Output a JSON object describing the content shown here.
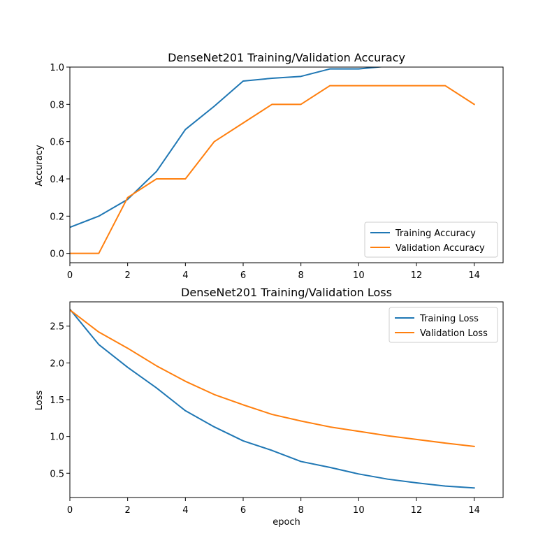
{
  "chart_data": [
    {
      "type": "line",
      "title": "DenseNet201 Training/Validation Accuracy",
      "xlabel": "",
      "ylabel": "Accuracy",
      "xlim": [
        0,
        15
      ],
      "ylim": [
        -0.05,
        1.0
      ],
      "xticks": [
        0,
        2,
        4,
        6,
        8,
        10,
        12,
        14
      ],
      "xtick_labels": [
        "0",
        "2",
        "4",
        "6",
        "8",
        "10",
        "12",
        "14"
      ],
      "yticks": [
        0.0,
        0.2,
        0.4,
        0.6,
        0.8,
        1.0
      ],
      "ytick_labels": [
        "0.0",
        "0.2",
        "0.4",
        "0.6",
        "0.8",
        "1.0"
      ],
      "grid": false,
      "legend_position": "lower-right",
      "x": [
        0,
        1,
        2,
        3,
        4,
        5,
        6,
        7,
        8,
        9,
        10,
        11,
        12,
        13,
        14
      ],
      "series": [
        {
          "name": "Training Accuracy",
          "color": "#1f77b4",
          "values": [
            0.14,
            0.2,
            0.29,
            0.44,
            0.665,
            0.79,
            0.925,
            0.94,
            0.95,
            0.99,
            0.99,
            1.005,
            1.005,
            1.005,
            1.005
          ]
        },
        {
          "name": "Validation Accuracy",
          "color": "#ff7f0e",
          "values": [
            0.0,
            0.0,
            0.3,
            0.4,
            0.4,
            0.6,
            0.7,
            0.8,
            0.8,
            0.9,
            0.9,
            0.9,
            0.9,
            0.9,
            0.8
          ]
        }
      ]
    },
    {
      "type": "line",
      "title": "DenseNet201 Training/Validation Loss",
      "xlabel": "epoch",
      "ylabel": "Loss",
      "xlim": [
        0,
        15
      ],
      "ylim": [
        0.17,
        2.83
      ],
      "xticks": [
        0,
        2,
        4,
        6,
        8,
        10,
        12,
        14
      ],
      "xtick_labels": [
        "0",
        "2",
        "4",
        "6",
        "8",
        "10",
        "12",
        "14"
      ],
      "yticks": [
        0.5,
        1.0,
        1.5,
        2.0,
        2.5
      ],
      "ytick_labels": [
        "0.5",
        "1.0",
        "1.5",
        "2.0",
        "2.5"
      ],
      "grid": false,
      "legend_position": "upper-right",
      "x": [
        0,
        1,
        2,
        3,
        4,
        5,
        6,
        7,
        8,
        9,
        10,
        11,
        12,
        13,
        14
      ],
      "series": [
        {
          "name": "Training Loss",
          "color": "#1f77b4",
          "values": [
            2.73,
            2.25,
            1.94,
            1.66,
            1.35,
            1.13,
            0.94,
            0.81,
            0.66,
            0.58,
            0.49,
            0.42,
            0.37,
            0.325,
            0.3
          ]
        },
        {
          "name": "Validation Loss",
          "color": "#ff7f0e",
          "values": [
            2.72,
            2.42,
            2.2,
            1.96,
            1.75,
            1.57,
            1.43,
            1.3,
            1.21,
            1.13,
            1.07,
            1.01,
            0.96,
            0.91,
            0.865
          ]
        }
      ]
    }
  ]
}
